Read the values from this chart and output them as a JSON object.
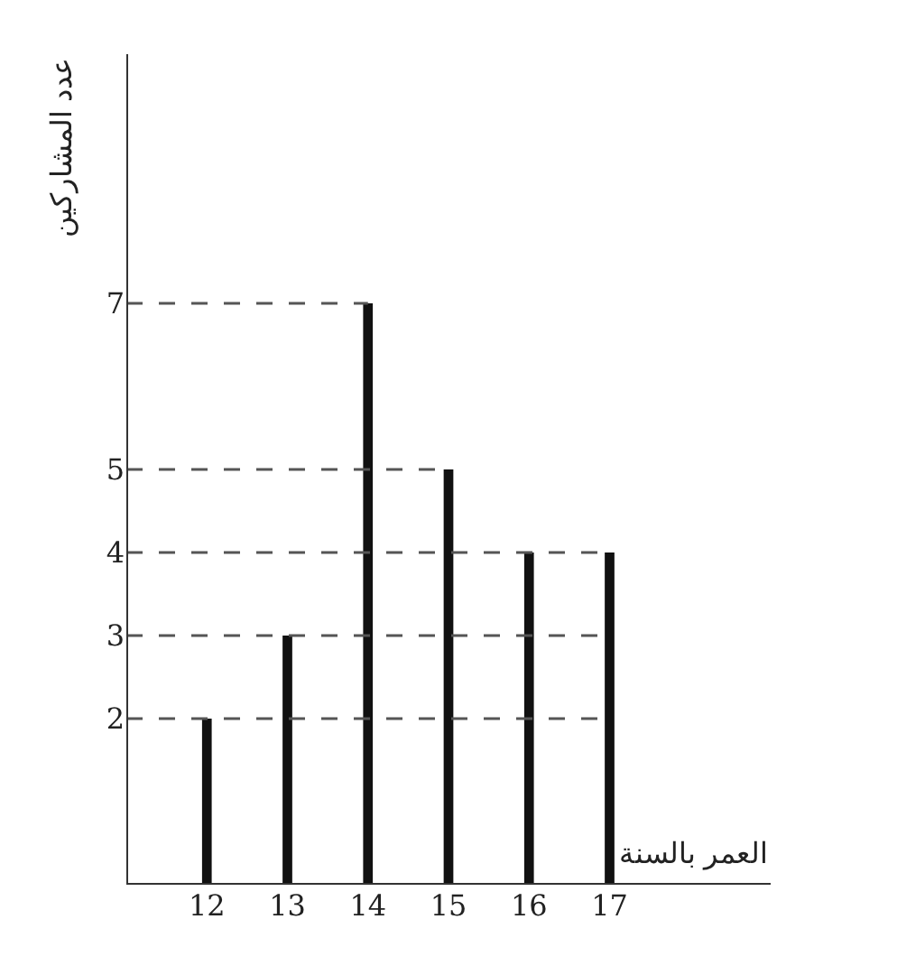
{
  "chart_data": {
    "type": "bar",
    "xlabel": "العمر بالسنة",
    "ylabel": "عدد المشاركين",
    "x": [
      12,
      13,
      14,
      15,
      16,
      17
    ],
    "values": [
      2,
      3,
      7,
      5,
      4,
      4
    ],
    "color": "#111111",
    "xlim": [
      11,
      19
    ],
    "xticks": [
      12,
      13,
      14,
      15,
      16,
      17
    ],
    "ylim": [
      0,
      10
    ],
    "yticks": [
      2,
      3,
      4,
      5,
      7
    ],
    "legend": false,
    "ref_lines": [
      {
        "axis": "y",
        "value": 2,
        "color": "#555555",
        "line_style": "dashed"
      },
      {
        "axis": "y",
        "value": 3,
        "color": "#555555",
        "line_style": "dashed"
      },
      {
        "axis": "y",
        "value": 4,
        "color": "#555555",
        "line_style": "dashed"
      },
      {
        "axis": "y",
        "value": 5,
        "color": "#555555",
        "line_style": "dashed"
      },
      {
        "axis": "y",
        "value": 7,
        "color": "#555555",
        "line_style": "dashed"
      }
    ]
  }
}
